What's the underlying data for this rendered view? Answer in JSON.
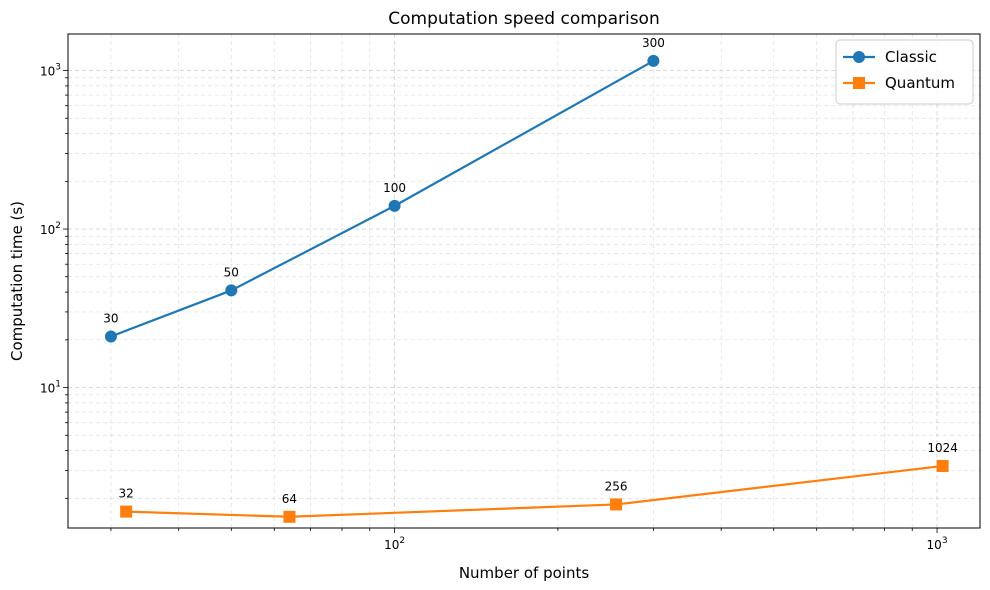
{
  "chart_data": {
    "type": "line",
    "title": "Computation speed comparison",
    "xlabel": "Number of points",
    "ylabel": "Computation time (s)",
    "xscale": "log",
    "yscale": "log",
    "xlim": [
      25,
      1200
    ],
    "ylim": [
      1.3,
      1700
    ],
    "grid": "both (major and minor), dashed",
    "legend_position": "top-right",
    "xticks": [
      {
        "value": 100,
        "base": "10",
        "exp": "2"
      },
      {
        "value": 1000,
        "base": "10",
        "exp": "3"
      }
    ],
    "yticks": [
      {
        "value": 10,
        "base": "10",
        "exp": "1"
      },
      {
        "value": 100,
        "base": "10",
        "exp": "2"
      },
      {
        "value": 1000,
        "base": "10",
        "exp": "3"
      }
    ],
    "series": [
      {
        "name": "Classic",
        "color": "#1f77b4",
        "marker": "circle",
        "points": [
          {
            "x": 30,
            "y": 21,
            "label": "30"
          },
          {
            "x": 50,
            "y": 41,
            "label": "50"
          },
          {
            "x": 100,
            "y": 140,
            "label": "100"
          },
          {
            "x": 300,
            "y": 1150,
            "label": "300"
          }
        ]
      },
      {
        "name": "Quantum",
        "color": "#ff7f0e",
        "marker": "square",
        "points": [
          {
            "x": 32,
            "y": 1.65,
            "label": "32"
          },
          {
            "x": 64,
            "y": 1.53,
            "label": "64"
          },
          {
            "x": 256,
            "y": 1.83,
            "label": "256"
          },
          {
            "x": 1024,
            "y": 3.2,
            "label": "1024"
          }
        ]
      }
    ]
  }
}
